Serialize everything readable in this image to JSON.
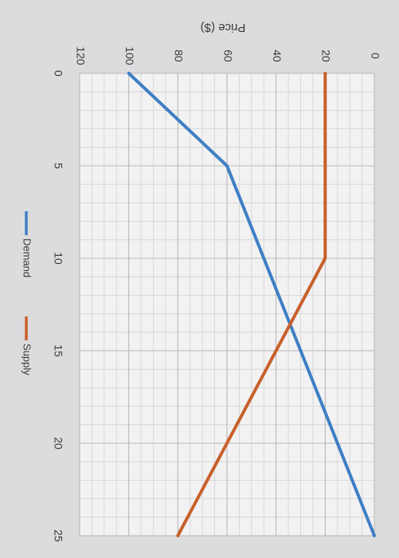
{
  "chart_data": {
    "type": "line",
    "ylabel": "Price ($)",
    "xlim": [
      0,
      25
    ],
    "ylim": [
      0,
      120
    ],
    "x_ticks": [
      "0",
      "5",
      "10",
      "15",
      "20",
      "25"
    ],
    "y_ticks": [
      "0",
      "20",
      "40",
      "60",
      "80",
      "100",
      "120"
    ],
    "grid": true,
    "legend": "bottom",
    "series": [
      {
        "name": "Demand",
        "color": "#3f7fc4",
        "points": [
          [
            0,
            100
          ],
          [
            5,
            60
          ],
          [
            25,
            0
          ]
        ]
      },
      {
        "name": "Supply",
        "color": "#c8602c",
        "points": [
          [
            0,
            20
          ],
          [
            10,
            20
          ],
          [
            25,
            80
          ]
        ]
      }
    ]
  }
}
